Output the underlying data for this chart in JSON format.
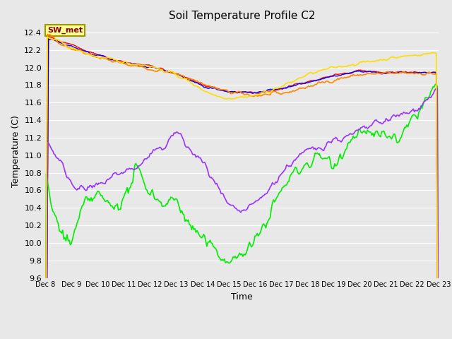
{
  "title": "Soil Temperature Profile C2",
  "xlabel": "Time",
  "ylabel": "Temperature (C)",
  "ylim": [
    9.6,
    12.5
  ],
  "xlim": [
    0,
    360
  ],
  "x_ticks": [
    0,
    24,
    48,
    72,
    96,
    120,
    144,
    168,
    192,
    216,
    240,
    264,
    288,
    312,
    336,
    360
  ],
  "x_tick_labels": [
    "Dec 8",
    "Dec 9",
    "Dec 10",
    "Dec 11",
    "Dec 12",
    "Dec 13",
    "Dec 14",
    "Dec 15",
    "Dec 16",
    "Dec 17",
    "Dec 18",
    "Dec 19",
    "Dec 20",
    "Dec 21",
    "Dec 22",
    "Dec 23"
  ],
  "yticks": [
    9.6,
    9.8,
    10.0,
    10.2,
    10.4,
    10.6,
    10.8,
    11.0,
    11.2,
    11.4,
    11.6,
    11.8,
    12.0,
    12.2,
    12.4
  ],
  "line_colors": {
    "neg32cm": "#ff0000",
    "neg8cm": "#0000ff",
    "neg2cm": "#00ee00",
    "TC_temp15": "#ff8800",
    "TC_temp16": "#ffdd00",
    "TC_temp17": "#9933ff"
  },
  "annotation_text": "SW_met",
  "annotation_color": "#880000",
  "annotation_bg": "#ffff99",
  "annotation_border": "#999900",
  "fig_bg": "#e8e8e8"
}
